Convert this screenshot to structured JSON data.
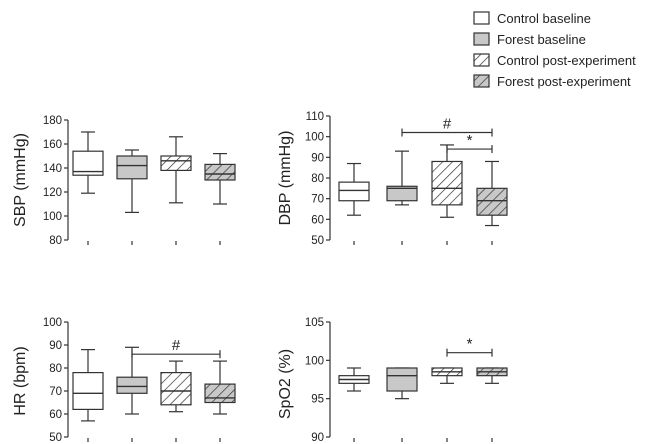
{
  "legend": [
    {
      "label": "Control baseline",
      "fill": "white"
    },
    {
      "label": "Forest baseline",
      "fill": "gray"
    },
    {
      "label": "Control post-experiment",
      "fill": "white-hatch"
    },
    {
      "label": "Forest post-experiment",
      "fill": "gray-hatch"
    }
  ],
  "colors": {
    "gray_fill": "#c8c8c8",
    "line": "#333333"
  },
  "chart_data": [
    {
      "type": "box",
      "ylabel": "SBP (mmHg)",
      "ylim": [
        80,
        180
      ],
      "yticks": [
        80,
        100,
        120,
        140,
        160,
        180
      ],
      "groups": [
        "Control baseline",
        "Forest baseline",
        "Control post-experiment",
        "Forest post-experiment"
      ],
      "boxes": [
        {
          "min": 119,
          "q1": 134,
          "median": 137,
          "q3": 154,
          "max": 170
        },
        {
          "min": 103,
          "q1": 131,
          "median": 142,
          "q3": 150,
          "max": 155
        },
        {
          "min": 111,
          "q1": 138,
          "median": 146,
          "q3": 150,
          "max": 166
        },
        {
          "min": 110,
          "q1": 130,
          "median": 135,
          "q3": 143,
          "max": 152
        }
      ],
      "brackets": []
    },
    {
      "type": "box",
      "ylabel": "DBP (mmHg)",
      "ylim": [
        50,
        110
      ],
      "yticks": [
        50,
        60,
        70,
        80,
        90,
        100,
        110
      ],
      "groups": [
        "Control baseline",
        "Forest baseline",
        "Control post-experiment",
        "Forest post-experiment"
      ],
      "boxes": [
        {
          "min": 62,
          "q1": 69,
          "median": 74,
          "q3": 78,
          "max": 87
        },
        {
          "min": 67,
          "q1": 69,
          "median": 75,
          "q3": 76,
          "max": 93
        },
        {
          "min": 61,
          "q1": 67,
          "median": 75,
          "q3": 88,
          "max": 96
        },
        {
          "min": 57,
          "q1": 62,
          "median": 69,
          "q3": 75,
          "max": 88
        }
      ],
      "brackets": [
        {
          "from": 1,
          "to": 3,
          "y": 102,
          "label": "#"
        },
        {
          "from": 2,
          "to": 3,
          "y": 94,
          "label": "*"
        }
      ]
    },
    {
      "type": "box",
      "ylabel": "HR (bpm)",
      "ylim": [
        50,
        100
      ],
      "yticks": [
        50,
        60,
        70,
        80,
        90,
        100
      ],
      "groups": [
        "Control baseline",
        "Forest baseline",
        "Control post-experiment",
        "Forest post-experiment"
      ],
      "boxes": [
        {
          "min": 57,
          "q1": 62,
          "median": 69,
          "q3": 78,
          "max": 88
        },
        {
          "min": 60,
          "q1": 69,
          "median": 72,
          "q3": 76,
          "max": 89
        },
        {
          "min": 61,
          "q1": 64,
          "median": 70,
          "q3": 78,
          "max": 83
        },
        {
          "min": 60,
          "q1": 65,
          "median": 67,
          "q3": 73,
          "max": 83
        }
      ],
      "brackets": [
        {
          "from": 1,
          "to": 3,
          "y": 86,
          "label": "#"
        }
      ]
    },
    {
      "type": "box",
      "ylabel": "SpO2 (%)",
      "ylim": [
        90,
        105
      ],
      "yticks": [
        90,
        95,
        100,
        105
      ],
      "groups": [
        "Control baseline",
        "Forest baseline",
        "Control post-experiment",
        "Forest post-experiment"
      ],
      "boxes": [
        {
          "min": 96,
          "q1": 97,
          "median": 97.5,
          "q3": 98,
          "max": 99
        },
        {
          "min": 95,
          "q1": 96,
          "median": 98,
          "q3": 99,
          "max": 99
        },
        {
          "min": 97,
          "q1": 98,
          "median": 98.5,
          "q3": 99,
          "max": 99
        },
        {
          "min": 97,
          "q1": 98,
          "median": 98.5,
          "q3": 99,
          "max": 99
        }
      ],
      "brackets": [
        {
          "from": 2,
          "to": 3,
          "y": 101,
          "label": "*"
        }
      ]
    }
  ]
}
